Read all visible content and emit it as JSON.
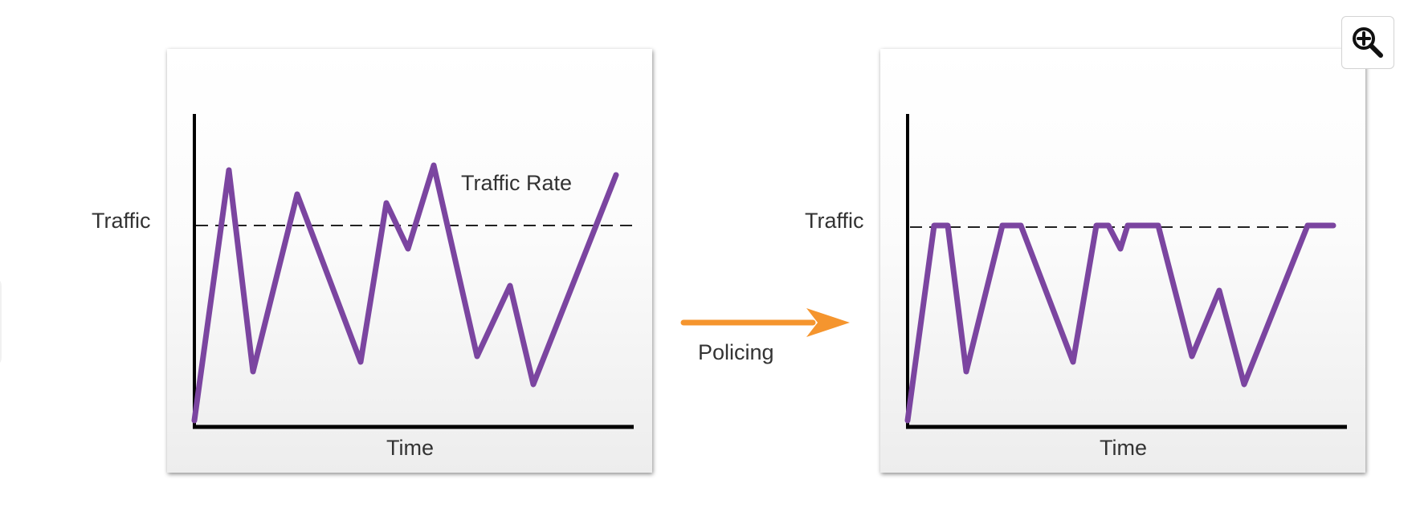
{
  "left_graph": {
    "y_axis_label": "Traffic",
    "x_axis_label": "Time",
    "threshold_label": "Traffic Rate"
  },
  "process": {
    "label": "Policing"
  },
  "right_graph": {
    "y_axis_label": "Traffic",
    "x_axis_label": "Time"
  },
  "controls": {
    "zoom_icon": "zoom-in-icon"
  },
  "colors": {
    "traffic_line": "#7b45a0",
    "arrow": "#f5952e",
    "axis": "#000000"
  }
}
